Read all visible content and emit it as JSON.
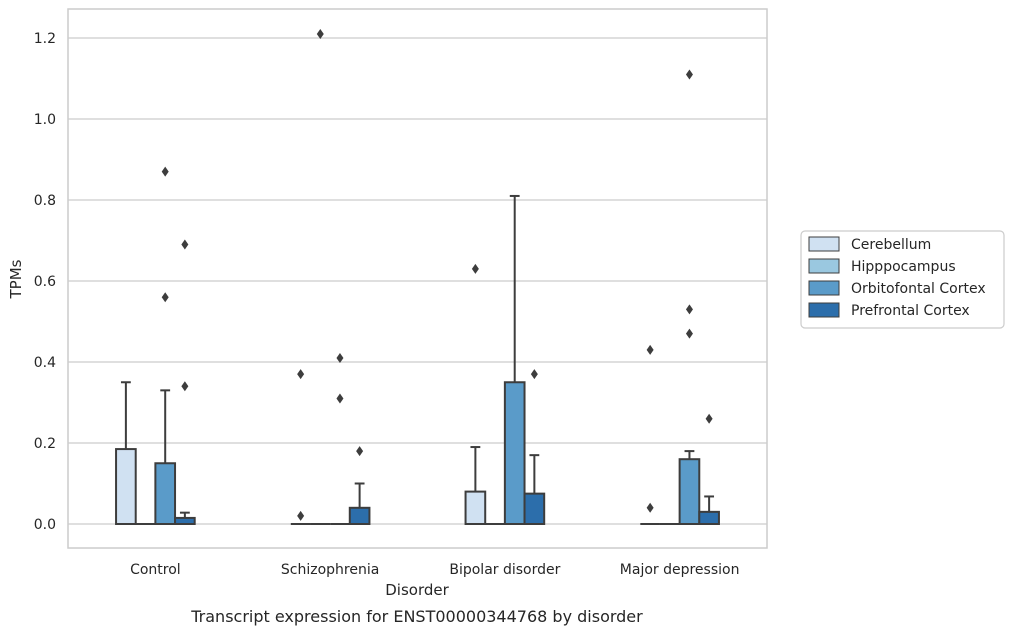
{
  "chart_data": {
    "type": "box",
    "title": "",
    "caption": "Transcript expression for ENST00000344768 by disorder",
    "xlabel": "Disorder",
    "ylabel": "TPMs",
    "categories": [
      "Control",
      "Schizophrenia",
      "Bipolar disorder",
      "Major depression"
    ],
    "ylim": [
      -0.06,
      1.27
    ],
    "yticks": [
      "0.0",
      "0.2",
      "0.4",
      "0.6",
      "0.8",
      "1.0",
      "1.2"
    ],
    "ytick_values": [
      0.0,
      0.2,
      0.4,
      0.6,
      0.8,
      1.0,
      1.2
    ],
    "grid": true,
    "legend_position": "right",
    "series": [
      {
        "name": "Cerebellum",
        "color": "#d0e1f2",
        "boxes": [
          {
            "q1": 0.0,
            "median": 0.0,
            "q3": 0.185,
            "whisker_low": 0.0,
            "whisker_high": 0.35,
            "outliers": []
          },
          {
            "q1": 0.0,
            "median": 0.0,
            "q3": 0.0,
            "whisker_low": 0.0,
            "whisker_high": 0.0,
            "outliers": [
              0.37,
              0.02
            ]
          },
          {
            "q1": 0.0,
            "median": 0.0,
            "q3": 0.08,
            "whisker_low": 0.0,
            "whisker_high": 0.19,
            "outliers": [
              0.63
            ]
          },
          {
            "q1": 0.0,
            "median": 0.0,
            "q3": 0.0,
            "whisker_low": 0.0,
            "whisker_high": 0.0,
            "outliers": [
              0.43,
              0.04
            ]
          }
        ]
      },
      {
        "name": "Hipppocampus",
        "color": "#9ac8e0",
        "boxes": [
          {
            "q1": 0.0,
            "median": 0.0,
            "q3": 0.0,
            "whisker_low": 0.0,
            "whisker_high": 0.0,
            "outliers": []
          },
          {
            "q1": 0.0,
            "median": 0.0,
            "q3": 0.0,
            "whisker_low": 0.0,
            "whisker_high": 0.0,
            "outliers": [
              1.21
            ]
          },
          {
            "q1": 0.0,
            "median": 0.0,
            "q3": 0.0,
            "whisker_low": 0.0,
            "whisker_high": 0.0,
            "outliers": []
          },
          {
            "q1": 0.0,
            "median": 0.0,
            "q3": 0.0,
            "whisker_low": 0.0,
            "whisker_high": 0.0,
            "outliers": []
          }
        ]
      },
      {
        "name": "Orbitofontal Cortex",
        "color": "#5a9bc9",
        "boxes": [
          {
            "q1": 0.0,
            "median": 0.0,
            "q3": 0.15,
            "whisker_low": 0.0,
            "whisker_high": 0.33,
            "outliers": [
              0.87,
              0.56
            ]
          },
          {
            "q1": 0.0,
            "median": 0.0,
            "q3": 0.0,
            "whisker_low": 0.0,
            "whisker_high": 0.0,
            "outliers": [
              0.41,
              0.31
            ]
          },
          {
            "q1": 0.0,
            "median": 0.0,
            "q3": 0.35,
            "whisker_low": 0.0,
            "whisker_high": 0.81,
            "outliers": []
          },
          {
            "q1": 0.0,
            "median": 0.0,
            "q3": 0.16,
            "whisker_low": 0.0,
            "whisker_high": 0.18,
            "outliers": [
              1.11,
              0.53,
              0.47
            ]
          }
        ]
      },
      {
        "name": "Prefrontal Cortex",
        "color": "#2c6eab",
        "boxes": [
          {
            "q1": 0.0,
            "median": 0.0,
            "q3": 0.015,
            "whisker_low": 0.0,
            "whisker_high": 0.028,
            "outliers": [
              0.69,
              0.34
            ]
          },
          {
            "q1": 0.0,
            "median": 0.0,
            "q3": 0.04,
            "whisker_low": 0.0,
            "whisker_high": 0.1,
            "outliers": [
              0.18
            ]
          },
          {
            "q1": 0.0,
            "median": 0.0,
            "q3": 0.075,
            "whisker_low": 0.0,
            "whisker_high": 0.17,
            "outliers": [
              0.37
            ]
          },
          {
            "q1": 0.0,
            "median": 0.0,
            "q3": 0.03,
            "whisker_low": 0.0,
            "whisker_high": 0.068,
            "outliers": [
              0.26
            ]
          }
        ]
      }
    ]
  }
}
